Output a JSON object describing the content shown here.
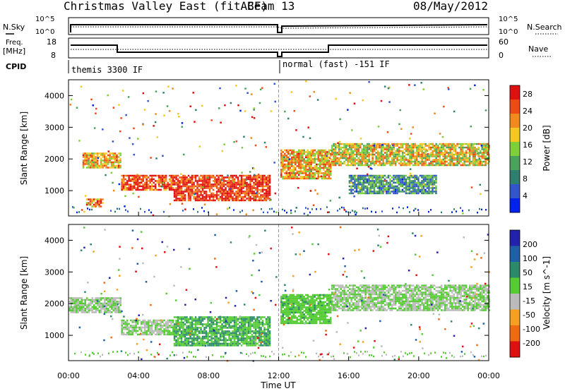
{
  "header": {
    "title": "Christmas Valley East (fitACF)",
    "beam": "Beam 13",
    "date": "08/May/2012"
  },
  "summary_panels": {
    "nsky_label": "N.Sky",
    "nsearch_label": "N.Search",
    "noise_ticks": [
      "10^5",
      "10^0"
    ],
    "freq_label": "Freq.",
    "freq_unit": "[MHz]",
    "freq_ticks": [
      "18",
      "8"
    ],
    "nave_label": "Nave",
    "nave_ticks": [
      "60",
      "0"
    ],
    "cpid_label": "CPID",
    "cpid_modes": [
      "themis 3300 IF",
      "normal (fast) -151 IF"
    ]
  },
  "chart_data": [
    {
      "type": "heatmap",
      "name": "power-panel",
      "ylabel": "Slant Range [km]",
      "y_ticks": [
        "1000",
        "2000",
        "3000",
        "4000"
      ],
      "ylim": [
        200,
        4500
      ],
      "x_ticks": [
        "00:00",
        "04:00",
        "08:00",
        "12:00",
        "16:00",
        "20:00",
        "00:00"
      ],
      "xlim_hours": [
        0,
        24
      ],
      "colorbar": {
        "label": "Power [dB]",
        "ticks": [
          "4",
          "8",
          "12",
          "16",
          "20",
          "24",
          "28"
        ],
        "range": [
          0,
          30
        ],
        "colors": [
          "#0022ee",
          "#3355cc",
          "#2f7f70",
          "#4aa35a",
          "#7fcf3a",
          "#f5c81f",
          "#f08a1a",
          "#f04a14",
          "#e01010"
        ]
      },
      "regions": [
        {
          "from_hour": 0.8,
          "to_hour": 3.0,
          "range_km": [
            1700,
            2200
          ],
          "level": 20
        },
        {
          "from_hour": 1.0,
          "to_hour": 2.0,
          "range_km": [
            500,
            750
          ],
          "level": 22
        },
        {
          "from_hour": 3.0,
          "to_hour": 6.0,
          "range_km": [
            1000,
            1500
          ],
          "level": 26
        },
        {
          "from_hour": 6.0,
          "to_hour": 11.5,
          "range_km": [
            700,
            1500
          ],
          "level": 27
        },
        {
          "from_hour": 12.1,
          "to_hour": 15.0,
          "range_km": [
            1400,
            2300
          ],
          "level": 20
        },
        {
          "from_hour": 15.0,
          "to_hour": 24.0,
          "range_km": [
            1800,
            2500
          ],
          "level": 18
        },
        {
          "from_hour": 16.0,
          "to_hour": 21.0,
          "range_km": [
            900,
            1500
          ],
          "level": 10
        }
      ]
    },
    {
      "type": "heatmap",
      "name": "velocity-panel",
      "ylabel": "Slant Range [km]",
      "y_ticks": [
        "1000",
        "2000",
        "3000",
        "4000"
      ],
      "ylim": [
        200,
        4500
      ],
      "x_ticks": [
        "00:00",
        "04:00",
        "08:00",
        "12:00",
        "16:00",
        "20:00",
        "00:00"
      ],
      "xlim_hours": [
        0,
        24
      ],
      "xlabel": "Time UT",
      "colorbar": {
        "label": "Velocity [m s^-1]",
        "ticks": [
          "200",
          "100",
          "50",
          "15",
          "-15",
          "-50",
          "-100",
          "-200"
        ],
        "range": [
          -250,
          250
        ],
        "colors": [
          "#2222aa",
          "#1f5fa8",
          "#2c8a6a",
          "#55cc33",
          "#bbbbbb",
          "#f5a020",
          "#f06a14",
          "#e01010"
        ]
      },
      "regions": [
        {
          "from_hour": 0.0,
          "to_hour": 3.0,
          "range_km": [
            1700,
            2200
          ],
          "level": 0
        },
        {
          "from_hour": 3.0,
          "to_hour": 6.0,
          "range_km": [
            1000,
            1500
          ],
          "level": 0
        },
        {
          "from_hour": 6.0,
          "to_hour": 11.5,
          "range_km": [
            700,
            1600
          ],
          "level": 60
        },
        {
          "from_hour": 12.1,
          "to_hour": 15.0,
          "range_km": [
            1400,
            2300
          ],
          "level": 40
        },
        {
          "from_hour": 15.0,
          "to_hour": 24.0,
          "range_km": [
            1800,
            2600
          ],
          "level": 0
        }
      ]
    }
  ],
  "colors": {
    "axis": "#000000",
    "background": "#ffffff"
  }
}
